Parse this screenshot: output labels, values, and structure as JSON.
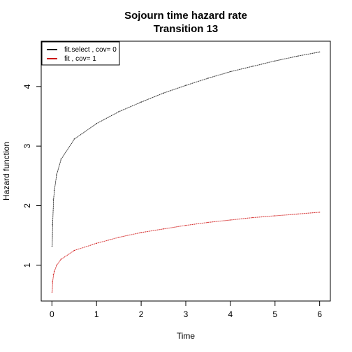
{
  "chart_data": {
    "type": "line",
    "title": "Sojourn time hazard rate",
    "subtitle": "Transition 13",
    "xlabel": "Time",
    "ylabel": "Hazard function",
    "xlim": [
      -0.24,
      6.24
    ],
    "ylim": [
      0.4,
      4.76
    ],
    "xticks": [
      "0",
      "1",
      "2",
      "3",
      "4",
      "5",
      "6"
    ],
    "yticks": [
      "1",
      "2",
      "3",
      "4"
    ],
    "grid": false,
    "legend_position": "top-left",
    "series": [
      {
        "name": "fit.select , cov= 0",
        "color": "#000000",
        "x": [
          0.001,
          0.01,
          0.03,
          0.05,
          0.1,
          0.2,
          0.5,
          1,
          1.5,
          2,
          2.5,
          3,
          3.5,
          4,
          4.5,
          5,
          5.5,
          6
        ],
        "y": [
          1.32,
          1.68,
          2.1,
          2.26,
          2.52,
          2.78,
          3.12,
          3.38,
          3.58,
          3.74,
          3.89,
          4.02,
          4.14,
          4.25,
          4.34,
          4.43,
          4.51,
          4.58
        ]
      },
      {
        "name": "fit , cov= 1",
        "color": "#cc0000",
        "x": [
          0.001,
          0.01,
          0.03,
          0.05,
          0.1,
          0.2,
          0.5,
          1,
          1.5,
          2,
          2.5,
          3,
          3.5,
          4,
          4.5,
          5,
          5.5,
          6
        ],
        "y": [
          0.55,
          0.72,
          0.84,
          0.9,
          1.0,
          1.1,
          1.25,
          1.37,
          1.47,
          1.55,
          1.61,
          1.67,
          1.72,
          1.76,
          1.8,
          1.83,
          1.86,
          1.89
        ]
      }
    ]
  }
}
